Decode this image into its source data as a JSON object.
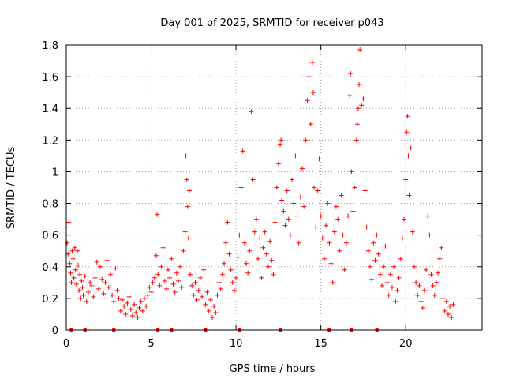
{
  "chart_data": {
    "type": "scatter",
    "title": "Day 001 of 2025, SRMTID for receiver p043",
    "xlabel": "GPS time / hours",
    "ylabel": "SRMTID / TECUs",
    "xlim": [
      0,
      24.5
    ],
    "ylim": [
      0,
      1.8
    ],
    "x_ticks": [
      0,
      5,
      10,
      15,
      20
    ],
    "x_tick_labels": [
      "0",
      "5",
      "10",
      "15",
      "20"
    ],
    "y_ticks": [
      0,
      0.2,
      0.4,
      0.6,
      0.8,
      1.0,
      1.2,
      1.4,
      1.6,
      1.8
    ],
    "y_tick_labels": [
      "0",
      "0.2",
      "0.4",
      "0.6",
      "0.8",
      "1",
      "1.2",
      "1.4",
      "1.6",
      "1.8"
    ],
    "grid": true,
    "marker": "plus",
    "color": "#ff0000",
    "series": [
      {
        "name": "p043",
        "points": [
          [
            0.0,
            0.65
          ],
          [
            0.05,
            0.55
          ],
          [
            0.1,
            0.48
          ],
          [
            0.15,
            0.68
          ],
          [
            0.2,
            0.42
          ],
          [
            0.25,
            0.36
          ],
          [
            0.3,
            0.3
          ],
          [
            0.35,
            0.5
          ],
          [
            0.4,
            0.45
          ],
          [
            0.45,
            0.33
          ],
          [
            0.5,
            0.52
          ],
          [
            0.55,
            0.38
          ],
          [
            0.6,
            0.29
          ],
          [
            0.65,
            0.5
          ],
          [
            0.7,
            0.41
          ],
          [
            0.75,
            0.25
          ],
          [
            0.8,
            0.35
          ],
          [
            0.85,
            0.2
          ],
          [
            0.9,
            0.31
          ],
          [
            0.95,
            0.27
          ],
          [
            1.0,
            0.22
          ],
          [
            1.1,
            0.34
          ],
          [
            1.2,
            0.18
          ],
          [
            1.3,
            0.24
          ],
          [
            1.4,
            0.3
          ],
          [
            1.5,
            0.28
          ],
          [
            1.6,
            0.21
          ],
          [
            1.7,
            0.33
          ],
          [
            1.8,
            0.43
          ],
          [
            1.9,
            0.26
          ],
          [
            2.0,
            0.4
          ],
          [
            2.1,
            0.32
          ],
          [
            2.2,
            0.23
          ],
          [
            2.3,
            0.3
          ],
          [
            2.4,
            0.44
          ],
          [
            2.5,
            0.27
          ],
          [
            2.6,
            0.35
          ],
          [
            2.7,
            0.22
          ],
          [
            2.8,
            0.18
          ],
          [
            2.9,
            0.39
          ],
          [
            3.0,
            0.25
          ],
          [
            3.1,
            0.2
          ],
          [
            3.2,
            0.12
          ],
          [
            3.3,
            0.19
          ],
          [
            3.4,
            0.15
          ],
          [
            3.5,
            0.1
          ],
          [
            3.6,
            0.17
          ],
          [
            3.7,
            0.21
          ],
          [
            3.8,
            0.13
          ],
          [
            3.9,
            0.09
          ],
          [
            4.0,
            0.16
          ],
          [
            4.1,
            0.11
          ],
          [
            4.2,
            0.08
          ],
          [
            4.3,
            0.14
          ],
          [
            4.4,
            0.18
          ],
          [
            4.5,
            0.12
          ],
          [
            4.6,
            0.2
          ],
          [
            4.7,
            0.15
          ],
          [
            4.8,
            0.22
          ],
          [
            4.9,
            0.27
          ],
          [
            5.0,
            0.24
          ],
          [
            5.1,
            0.3
          ],
          [
            5.2,
            0.33
          ],
          [
            5.3,
            0.47
          ],
          [
            5.35,
            0.73
          ],
          [
            5.4,
            0.35
          ],
          [
            5.5,
            0.28
          ],
          [
            5.6,
            0.4
          ],
          [
            5.7,
            0.52
          ],
          [
            5.8,
            0.31
          ],
          [
            5.9,
            0.26
          ],
          [
            6.0,
            0.38
          ],
          [
            6.1,
            0.33
          ],
          [
            6.2,
            0.45
          ],
          [
            6.3,
            0.29
          ],
          [
            6.4,
            0.24
          ],
          [
            6.5,
            0.36
          ],
          [
            6.6,
            0.31
          ],
          [
            6.7,
            0.4
          ],
          [
            6.8,
            0.27
          ],
          [
            6.9,
            0.5
          ],
          [
            7.0,
            0.62
          ],
          [
            7.05,
            1.1
          ],
          [
            7.1,
            0.95
          ],
          [
            7.15,
            0.78
          ],
          [
            7.2,
            0.58
          ],
          [
            7.25,
            0.88
          ],
          [
            7.3,
            0.35
          ],
          [
            7.4,
            0.28
          ],
          [
            7.5,
            0.22
          ],
          [
            7.6,
            0.3
          ],
          [
            7.7,
            0.19
          ],
          [
            7.8,
            0.25
          ],
          [
            7.9,
            0.33
          ],
          [
            8.0,
            0.21
          ],
          [
            8.1,
            0.38
          ],
          [
            8.2,
            0.16
          ],
          [
            8.3,
            0.24
          ],
          [
            8.4,
            0.12
          ],
          [
            8.5,
            0.19
          ],
          [
            8.6,
            0.08
          ],
          [
            8.7,
            0.15
          ],
          [
            8.8,
            0.11
          ],
          [
            8.9,
            0.22
          ],
          [
            9.0,
            0.3
          ],
          [
            9.1,
            0.26
          ],
          [
            9.2,
            0.35
          ],
          [
            9.3,
            0.42
          ],
          [
            9.4,
            0.55
          ],
          [
            9.5,
            0.68
          ],
          [
            9.6,
            0.48
          ],
          [
            9.7,
            0.38
          ],
          [
            9.8,
            0.3
          ],
          [
            9.9,
            0.25
          ],
          [
            10.0,
            0.33
          ],
          [
            10.1,
            0.46
          ],
          [
            10.2,
            0.6
          ],
          [
            10.3,
            0.9
          ],
          [
            10.4,
            1.13
          ],
          [
            10.5,
            0.55
          ],
          [
            10.6,
            0.42
          ],
          [
            10.7,
            0.36
          ],
          [
            10.8,
            0.5
          ],
          [
            10.9,
            1.38
          ],
          [
            11.0,
            0.95
          ],
          [
            11.1,
            0.62
          ],
          [
            11.2,
            0.7
          ],
          [
            11.3,
            0.45
          ],
          [
            11.4,
            0.58
          ],
          [
            11.5,
            0.33
          ],
          [
            11.6,
            0.52
          ],
          [
            11.7,
            0.62
          ],
          [
            11.8,
            0.48
          ],
          [
            11.9,
            0.4
          ],
          [
            12.0,
            0.56
          ],
          [
            12.1,
            0.44
          ],
          [
            12.2,
            0.35
          ],
          [
            12.3,
            0.68
          ],
          [
            12.4,
            0.9
          ],
          [
            12.5,
            1.05
          ],
          [
            12.6,
            1.17
          ],
          [
            12.65,
            1.2
          ],
          [
            12.7,
            0.82
          ],
          [
            12.8,
            0.75
          ],
          [
            12.9,
            0.66
          ],
          [
            13.0,
            0.88
          ],
          [
            13.1,
            0.7
          ],
          [
            13.2,
            0.6
          ],
          [
            13.3,
            0.95
          ],
          [
            13.4,
            0.8
          ],
          [
            13.5,
            1.1
          ],
          [
            13.6,
            0.72
          ],
          [
            13.7,
            0.55
          ],
          [
            13.8,
            0.84
          ],
          [
            13.9,
            1.02
          ],
          [
            14.0,
            0.78
          ],
          [
            14.1,
            1.2
          ],
          [
            14.2,
            1.45
          ],
          [
            14.3,
            1.6
          ],
          [
            14.4,
            1.3
          ],
          [
            14.5,
            1.69
          ],
          [
            14.55,
            1.5
          ],
          [
            14.6,
            0.9
          ],
          [
            14.7,
            0.65
          ],
          [
            14.8,
            0.88
          ],
          [
            14.9,
            1.08
          ],
          [
            15.0,
            0.72
          ],
          [
            15.1,
            0.58
          ],
          [
            15.2,
            0.45
          ],
          [
            15.3,
            0.66
          ],
          [
            15.4,
            0.8
          ],
          [
            15.5,
            0.55
          ],
          [
            15.6,
            0.42
          ],
          [
            15.7,
            0.3
          ],
          [
            15.8,
            0.62
          ],
          [
            15.9,
            0.78
          ],
          [
            16.0,
            0.7
          ],
          [
            16.1,
            0.5
          ],
          [
            16.2,
            0.85
          ],
          [
            16.3,
            0.6
          ],
          [
            16.4,
            0.38
          ],
          [
            16.5,
            0.55
          ],
          [
            16.6,
            0.72
          ],
          [
            16.7,
            1.48
          ],
          [
            16.75,
            1.62
          ],
          [
            16.8,
            1.0
          ],
          [
            16.9,
            0.75
          ],
          [
            17.0,
            0.9
          ],
          [
            17.1,
            1.2
          ],
          [
            17.15,
            1.3
          ],
          [
            17.2,
            1.4
          ],
          [
            17.25,
            1.55
          ],
          [
            17.3,
            1.77
          ],
          [
            17.4,
            1.42
          ],
          [
            17.5,
            1.46
          ],
          [
            17.6,
            0.88
          ],
          [
            17.7,
            0.65
          ],
          [
            17.8,
            0.5
          ],
          [
            17.9,
            0.4
          ],
          [
            18.0,
            0.32
          ],
          [
            18.1,
            0.55
          ],
          [
            18.2,
            0.44
          ],
          [
            18.3,
            0.6
          ],
          [
            18.4,
            0.48
          ],
          [
            18.5,
            0.35
          ],
          [
            18.6,
            0.28
          ],
          [
            18.7,
            0.4
          ],
          [
            18.8,
            0.53
          ],
          [
            18.9,
            0.3
          ],
          [
            19.0,
            0.22
          ],
          [
            19.1,
            0.35
          ],
          [
            19.2,
            0.27
          ],
          [
            19.3,
            0.4
          ],
          [
            19.4,
            0.18
          ],
          [
            19.5,
            0.25
          ],
          [
            19.6,
            0.33
          ],
          [
            19.7,
            0.45
          ],
          [
            19.8,
            0.58
          ],
          [
            19.9,
            0.7
          ],
          [
            20.0,
            0.95
          ],
          [
            20.05,
            1.25
          ],
          [
            20.1,
            1.35
          ],
          [
            20.15,
            1.1
          ],
          [
            20.2,
            0.85
          ],
          [
            20.3,
            1.15
          ],
          [
            20.4,
            0.62
          ],
          [
            20.5,
            0.4
          ],
          [
            20.6,
            0.3
          ],
          [
            20.7,
            0.22
          ],
          [
            20.8,
            0.28
          ],
          [
            20.9,
            0.18
          ],
          [
            21.0,
            0.14
          ],
          [
            21.1,
            0.25
          ],
          [
            21.2,
            0.38
          ],
          [
            21.3,
            0.72
          ],
          [
            21.4,
            0.6
          ],
          [
            21.5,
            0.35
          ],
          [
            21.6,
            0.28
          ],
          [
            21.7,
            0.22
          ],
          [
            21.8,
            0.3
          ],
          [
            21.9,
            0.36
          ],
          [
            22.0,
            0.45
          ],
          [
            22.1,
            0.52
          ],
          [
            22.2,
            0.2
          ],
          [
            22.3,
            0.12
          ],
          [
            22.4,
            0.18
          ],
          [
            22.5,
            0.1
          ],
          [
            22.6,
            0.15
          ],
          [
            22.7,
            0.08
          ],
          [
            22.8,
            0.16
          ]
        ]
      }
    ],
    "bottom_markers_x": [
      0.3,
      1.1,
      2.8,
      5.4,
      6.2,
      8.2,
      10.2,
      12.6,
      15.5,
      16.8,
      18.3
    ]
  }
}
